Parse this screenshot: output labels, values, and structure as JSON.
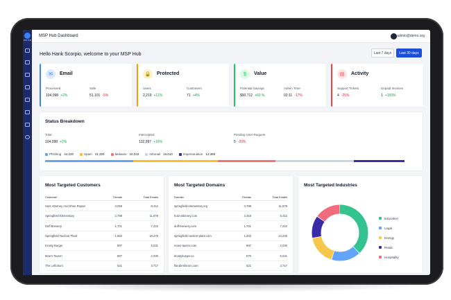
{
  "app": {
    "title": "MSP Hub Dashboard",
    "logo_text": "MSP HUB"
  },
  "user": {
    "email": "admin@demo.org"
  },
  "greeting": "Hello Hank Scorpio, welcome to your MSP Hub",
  "range_buttons": {
    "last7": "Last 7 days",
    "last30": "Last 30 days"
  },
  "kpis": [
    {
      "title": "Email",
      "icon": "envelope-icon",
      "color": "#3b82f6",
      "tint": "#dbeafe",
      "metrics": [
        {
          "label": "Processed",
          "value": "104,098",
          "change": "+2%",
          "trend": "up"
        },
        {
          "label": "Safe",
          "value": "51,101",
          "change": "-5%",
          "trend": "down"
        }
      ]
    },
    {
      "title": "Protected",
      "icon": "lock-icon",
      "color": "#f59e0b",
      "tint": "#fef3c7",
      "metrics": [
        {
          "label": "Users",
          "value": "2,219",
          "change": "+11%",
          "trend": "up"
        },
        {
          "label": "Customers",
          "value": "71",
          "change": "+4%",
          "trend": "up"
        }
      ]
    },
    {
      "title": "Value",
      "icon": "dollar-icon",
      "color": "#22c55e",
      "tint": "#dcfce7",
      "metrics": [
        {
          "label": "Potential Savings",
          "value": "$90,712",
          "change": "+60 %",
          "trend": "up"
        },
        {
          "label": "Admin Time",
          "value": "02:11",
          "change": "-17%",
          "trend": "down"
        }
      ]
    },
    {
      "title": "Activity",
      "icon": "chart-icon",
      "color": "#ef4444",
      "tint": "#fee2e2",
      "metrics": [
        {
          "label": "Support Tickets",
          "value": "4",
          "change": "-25%",
          "trend": "down"
        },
        {
          "label": "Unpaid Invoices",
          "value": "1",
          "change": "+150%",
          "trend": "up"
        }
      ]
    }
  ],
  "status": {
    "title": "Status Breakdown",
    "metrics": [
      {
        "label": "Total",
        "value": "104,098",
        "change": "+2%",
        "trend": "up"
      },
      {
        "label": "Intercepted",
        "value": "132,997",
        "change": "+16%",
        "trend": "up"
      },
      {
        "label": "Pending User Request",
        "value": "5",
        "change": "-20%",
        "trend": "down"
      }
    ],
    "legend": [
      {
        "label": "Phishing",
        "value": "44,220",
        "color": "#60a5fa",
        "share": 0.26
      },
      {
        "label": "Spam",
        "value": "41,320",
        "color": "#fbbf24",
        "share": 0.25
      },
      {
        "label": "Malware",
        "value": "10,043",
        "color": "#f87171",
        "share": 0.17
      },
      {
        "label": "Infomail",
        "value": "16,010",
        "color": "#cbd5e1",
        "share": 0.23
      },
      {
        "label": "Impersonation",
        "value": "12,389",
        "color": "#3b2aa6",
        "share": 0.15
      }
    ]
  },
  "customers": {
    "title": "Most Targeted Customers",
    "headers": [
      "Customer",
      "Threats",
      "Total Emails"
    ],
    "rows": [
      [
        "Hutz Attorney And Shoe Repair",
        "3,059",
        "8,412"
      ],
      [
        "Springfield Elementary",
        "2,788",
        "11,878"
      ],
      [
        "Duff Brewery",
        "1,701",
        "7,222"
      ],
      [
        "Springfield Nuclear Plant",
        "1,683",
        "16,276"
      ],
      [
        "Krusty Burger",
        "897",
        "5,031"
      ],
      [
        "Moe's Tavern",
        "897",
        "2,030"
      ],
      [
        "The Leftorium",
        "521",
        "3,717"
      ]
    ]
  },
  "domains": {
    "title": "Most Targeted Domains",
    "headers": [
      "Domain",
      "Threats",
      "Total Emails"
    ],
    "rows": [
      [
        "springfield-elementary.org",
        "3,788",
        "11,878"
      ],
      [
        "hutz-attorney.com",
        "2,419",
        "8,412"
      ],
      [
        "duff-brewery.com",
        "1,701",
        "7,222"
      ],
      [
        "springfield-nuclear-plant.com",
        "1,203",
        "14,225"
      ],
      [
        "moes-tavern.com",
        "897",
        "2,030"
      ],
      [
        "krustyburger.co",
        "570",
        "5,031"
      ],
      [
        "flandersforum.com",
        "521",
        "3,717"
      ]
    ]
  },
  "industries": {
    "title": "Most Targeted Industries",
    "chart_data": {
      "type": "pie",
      "variant": "donut",
      "categories": [
        "Education",
        "Legal",
        "Energy",
        "Retail",
        "Hospitality"
      ],
      "values": [
        38,
        17,
        17,
        13,
        15
      ],
      "colors": [
        "#34c38f",
        "#60a5fa",
        "#f5c84c",
        "#3b2aa6",
        "#f06b7c"
      ]
    }
  }
}
